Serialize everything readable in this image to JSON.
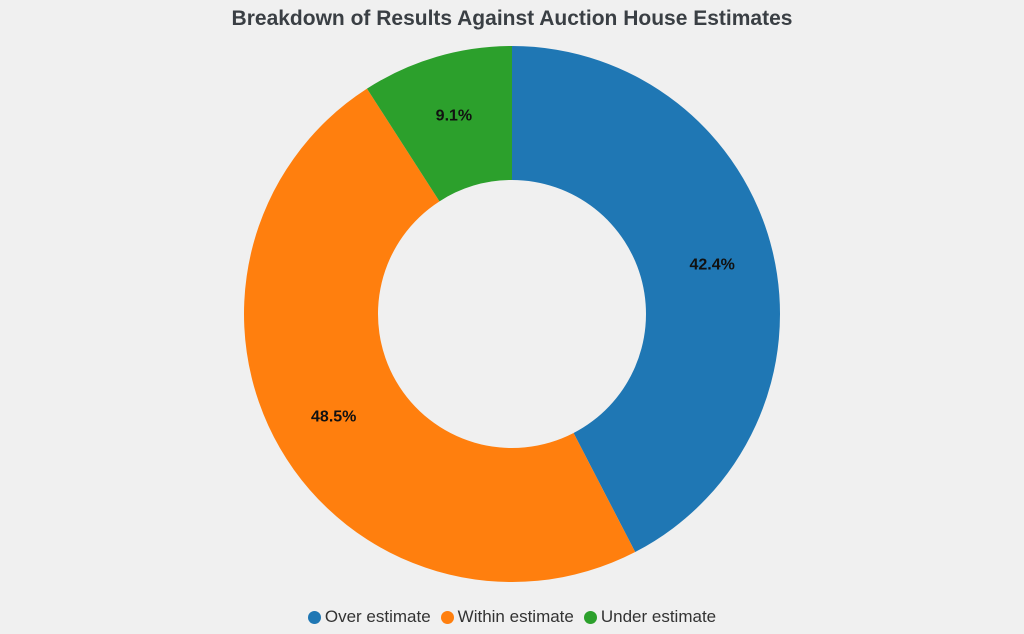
{
  "chart_data": {
    "type": "pie",
    "title": "Breakdown of Results Against Auction House Estimates",
    "donut": true,
    "categories": [
      "Over estimate",
      "Within estimate",
      "Under estimate"
    ],
    "values": [
      42.4,
      48.5,
      9.1
    ],
    "value_labels": [
      "42.4%",
      "48.5%",
      "9.1%"
    ],
    "colors": [
      "#1f77b4",
      "#ff7f0e",
      "#2ca02c"
    ],
    "legend_position": "bottom",
    "start": "top",
    "direction": "clockwise"
  }
}
